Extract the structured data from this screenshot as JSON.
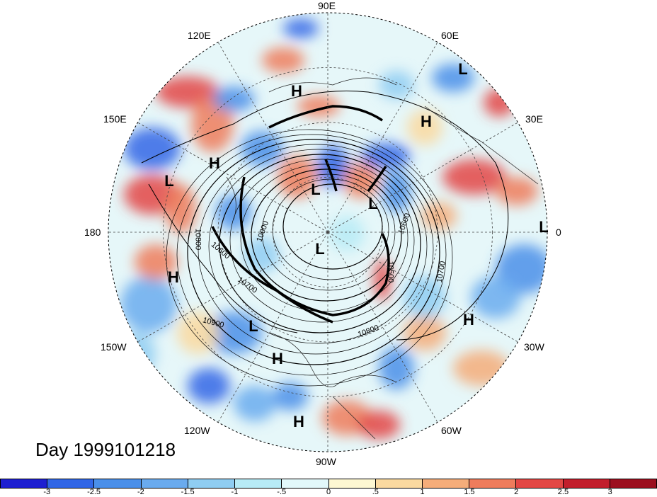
{
  "date_label": "Day 1999101218",
  "longitude_labels": {
    "lon_90e": "90E",
    "lon_120e": "120E",
    "lon_60e": "60E",
    "lon_150e": "150E",
    "lon_30e": "30E",
    "lon_180": "180",
    "lon_0": "0",
    "lon_150w": "150W",
    "lon_30w": "30W",
    "lon_120w": "120W",
    "lon_60w": "60W",
    "lon_90w": "90W"
  },
  "pressure_systems": [
    {
      "label": "L"
    },
    {
      "label": "H"
    },
    {
      "label": "H"
    },
    {
      "label": "L"
    },
    {
      "label": "L"
    },
    {
      "label": "H"
    },
    {
      "label": "L"
    },
    {
      "label": "L"
    },
    {
      "label": "L"
    },
    {
      "label": "H"
    },
    {
      "label": "H"
    },
    {
      "label": "L"
    },
    {
      "label": "H"
    },
    {
      "label": "H"
    },
    {
      "label": "H"
    }
  ],
  "contour_labels": {
    "c1": "10800",
    "c2": "10600",
    "c3": "10700",
    "c4": "10900",
    "c5": "10000",
    "c6": "10500",
    "c7": "10700",
    "c8": "10600",
    "c9": "10800"
  },
  "colorbar": {
    "ticks": [
      "-3",
      "-2.5",
      "-2",
      "-1.5",
      "-1",
      "-.5",
      "0",
      ".5",
      "1",
      "1.5",
      "2",
      "2.5",
      "3"
    ],
    "colors": [
      "#1d1fd1",
      "#3166e6",
      "#4a8fe9",
      "#6aabef",
      "#8fcdf2",
      "#b7ebf6",
      "#e2f8fa",
      "#fdf7d2",
      "#fad9a0",
      "#f5ad7a",
      "#ef7c5c",
      "#e34744",
      "#c21e2c",
      "#9c0f1f"
    ]
  }
}
